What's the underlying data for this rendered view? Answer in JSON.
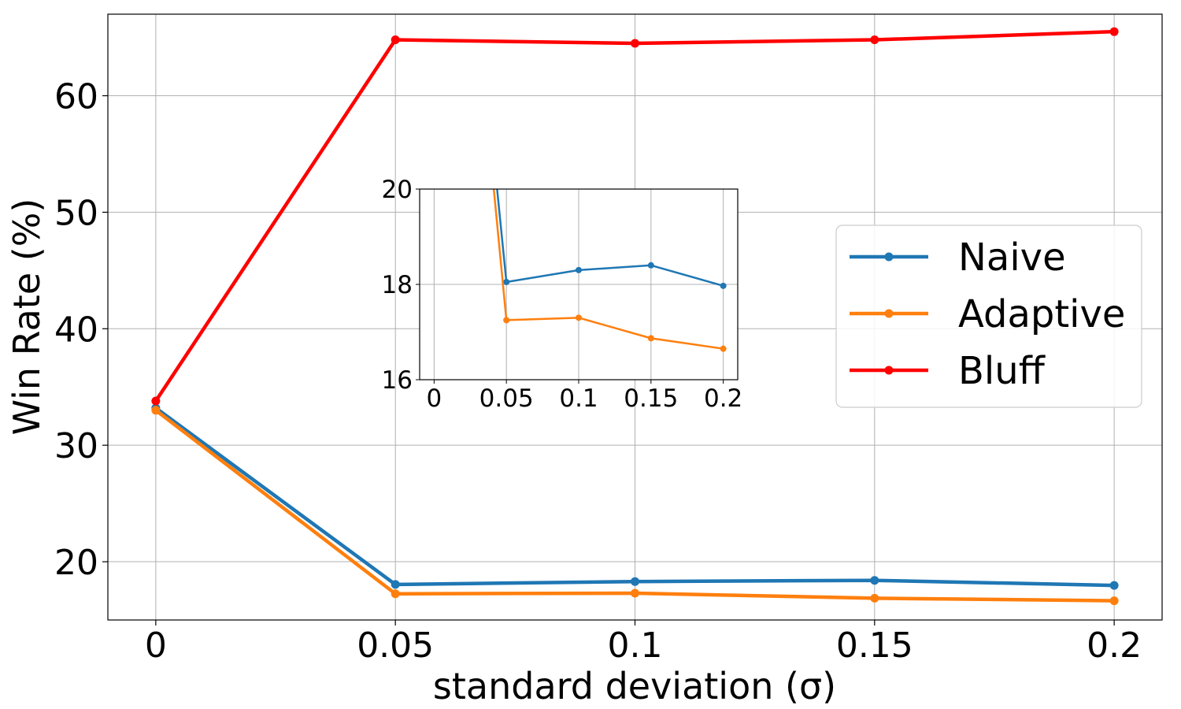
{
  "chart_data": {
    "type": "line",
    "xlabel": "standard deviation (σ)",
    "ylabel": "Win Rate (%)",
    "x": [
      0,
      0.05,
      0.1,
      0.15,
      0.2
    ],
    "x_tick_labels": [
      "0",
      "0.05",
      "0.1",
      "0.15",
      "0.2"
    ],
    "y_ticks": [
      20,
      30,
      40,
      50,
      60
    ],
    "xlim": [
      -0.01,
      0.21
    ],
    "ylim": [
      15,
      67
    ],
    "grid": true,
    "legend_position": "center-right",
    "series": [
      {
        "name": "Naive",
        "color": "#1f77b4",
        "values": [
          33.2,
          18.05,
          18.3,
          18.4,
          17.97
        ]
      },
      {
        "name": "Adaptive",
        "color": "#ff7f0e",
        "values": [
          33.0,
          17.25,
          17.3,
          16.87,
          16.65
        ]
      },
      {
        "name": "Bluff",
        "color": "#ff0000",
        "values": [
          33.8,
          64.8,
          64.5,
          64.8,
          65.5
        ]
      }
    ],
    "inset": {
      "x_tick_labels": [
        "0",
        "0.05",
        "0.1",
        "0.15",
        "0.2"
      ],
      "y_ticks": [
        16,
        18,
        20
      ],
      "xlim": [
        -0.01,
        0.21
      ],
      "ylim": [
        16,
        20
      ],
      "grid": true
    }
  }
}
